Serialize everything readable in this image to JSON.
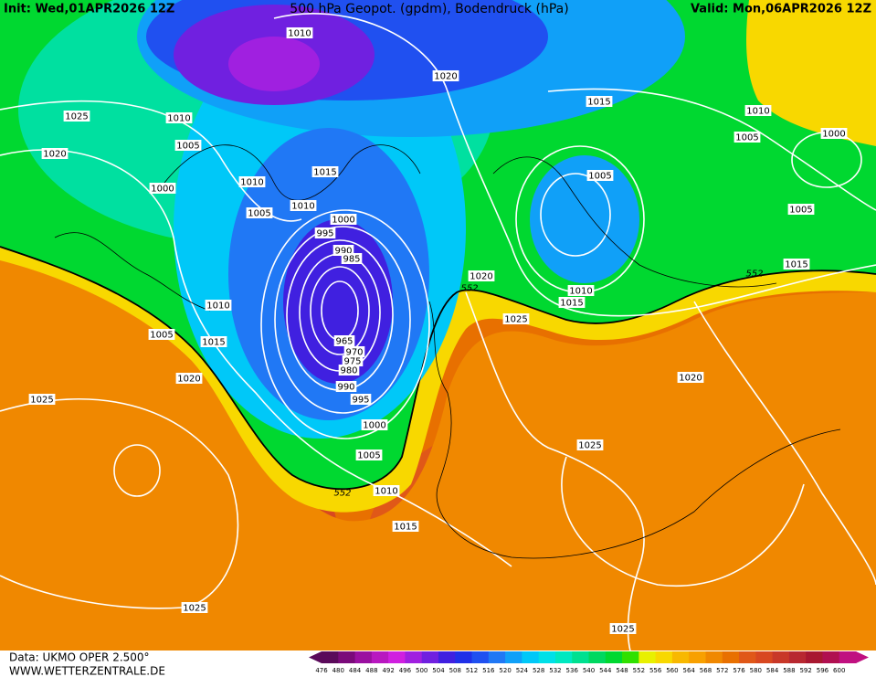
{
  "header": {
    "init": "Init: Wed,01APR2026 12Z",
    "title": "500 hPa Geopot. (gpdm), Bodendruck (hPa)",
    "valid": "Valid: Mon,06APR2026 12Z"
  },
  "isobar_labels": [
    "1010",
    "1025",
    "1010",
    "1005",
    "1020",
    "1010",
    "1000",
    "1015",
    "1005",
    "1010",
    "1000",
    "995",
    "990",
    "985",
    "1020",
    "1015",
    "1010",
    "1005",
    "1000",
    "1005",
    "1005",
    "1015",
    "1020",
    "1010",
    "1015",
    "1025",
    "1010",
    "1005",
    "1015",
    "965",
    "970",
    "975",
    "980",
    "990",
    "995",
    "1020",
    "1025",
    "1000",
    "1005",
    "1020",
    "1025",
    "1010",
    "1015",
    "1025",
    "1025"
  ],
  "height_labels": [
    "552",
    "552",
    "552"
  ],
  "legend": {
    "values": [
      476,
      480,
      484,
      488,
      492,
      496,
      500,
      504,
      508,
      512,
      516,
      520,
      524,
      528,
      532,
      536,
      540,
      544,
      548,
      552,
      556,
      560,
      564,
      568,
      572,
      576,
      580,
      584,
      588,
      592,
      596,
      600
    ],
    "colors": [
      "#5a0a5a",
      "#7a0a7a",
      "#9a10a0",
      "#b818c0",
      "#d020e0",
      "#a020e0",
      "#7020e0",
      "#4020e0",
      "#2030e8",
      "#2050f0",
      "#2078f5",
      "#10a0f8",
      "#00c8f8",
      "#00e0e8",
      "#00e8c0",
      "#00e090",
      "#00d860",
      "#00d830",
      "#30e000",
      "#e8f000",
      "#f8d800",
      "#f8b800",
      "#f8a000",
      "#f08800",
      "#e87000",
      "#e05818",
      "#d84820",
      "#c83828",
      "#b82830",
      "#a81830",
      "#b01050",
      "#c01080"
    ]
  },
  "footer": {
    "data": "Data: UKMO OPER 2.500°",
    "site": "WWW.WETTERZENTRALE.DE"
  }
}
